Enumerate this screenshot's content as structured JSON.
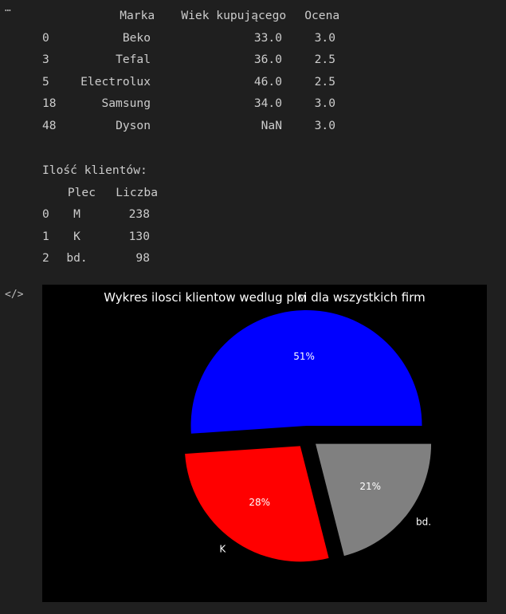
{
  "output_icon": "ellipsis-icon",
  "code_icon": "code-brackets-icon",
  "table1": {
    "header": {
      "marka": "Marka",
      "wiek": "Wiek kupującego",
      "ocena": "Ocena"
    },
    "rows": [
      {
        "idx": "0",
        "marka": "Beko",
        "wiek": "33.0",
        "ocena": "3.0"
      },
      {
        "idx": "3",
        "marka": "Tefal",
        "wiek": "36.0",
        "ocena": "2.5"
      },
      {
        "idx": "5",
        "marka": "Electrolux",
        "wiek": "46.0",
        "ocena": "2.5"
      },
      {
        "idx": "18",
        "marka": "Samsung",
        "wiek": "34.0",
        "ocena": "3.0"
      },
      {
        "idx": "48",
        "marka": "Dyson",
        "wiek": "NaN",
        "ocena": "3.0"
      }
    ]
  },
  "clients_heading": "Ilość klientów:",
  "table2": {
    "header": {
      "plec": "Plec",
      "liczba": "Liczba"
    },
    "rows": [
      {
        "idx": "0",
        "plec": "M",
        "liczba": "238"
      },
      {
        "idx": "1",
        "plec": "K",
        "liczba": "130"
      },
      {
        "idx": "2",
        "plec": "bd.",
        "liczba": "98"
      }
    ]
  },
  "chart_data": {
    "type": "pie",
    "title": "Wykres ilosci klientow wedlug plci dla wszystkich firm",
    "labels": [
      "M",
      "K",
      "bd."
    ],
    "values": [
      238,
      130,
      98
    ],
    "percent_labels": [
      "51%",
      "28%",
      "21%"
    ],
    "colors": [
      "#0000ff",
      "#ff0000",
      "#808080"
    ],
    "explode": [
      0.1,
      0.1,
      0.1
    ],
    "background": "#000000"
  }
}
